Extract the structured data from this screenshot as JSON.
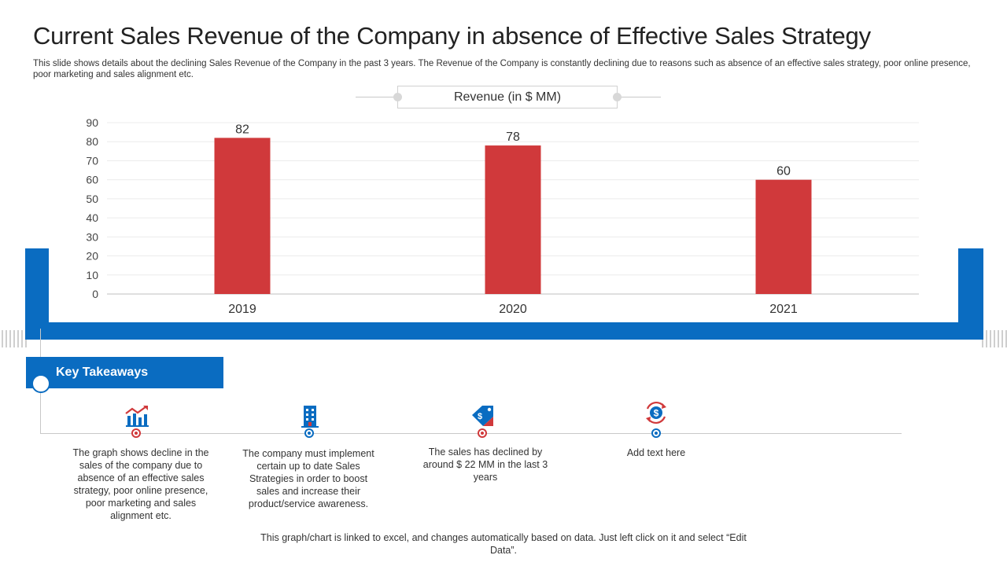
{
  "title": "Current Sales Revenue of the Company in absence of Effective Sales Strategy",
  "subtitle": "This slide shows details about the declining Sales Revenue of the Company in the past 3 years. The Revenue of the Company is constantly declining due to reasons such as absence of an effective sales strategy, poor online presence, poor marketing and sales alignment etc.",
  "colors": {
    "accent_blue": "#0a6cc1",
    "bar_red": "#d0393b"
  },
  "chart_data": {
    "type": "bar",
    "title": "Revenue (in $ MM)",
    "categories": [
      "2019",
      "2020",
      "2021"
    ],
    "series": [
      {
        "name": "Revenue (in $ MM)",
        "values": [
          82,
          78,
          60
        ]
      }
    ],
    "ylim": [
      0,
      90
    ],
    "yticks": [
      0,
      10,
      20,
      30,
      40,
      50,
      60,
      70,
      80,
      90
    ],
    "grid": true,
    "xlabel": "",
    "ylabel": ""
  },
  "key_takeaways": {
    "heading": "Key Takeaways",
    "items": [
      {
        "icon": "bar-chart-icon",
        "color": "#d0393b",
        "text": "The graph shows decline in the sales of the company due to absence of an effective sales strategy, poor online presence, poor marketing and sales alignment etc."
      },
      {
        "icon": "building-icon",
        "color": "#0a6cc1",
        "text": "The company must implement certain up to date Sales Strategies in order to boost sales and increase their product/service awareness."
      },
      {
        "icon": "price-tag-icon",
        "color": "#d0393b",
        "text": "The sales has declined by around $ 22 MM in the last 3 years"
      },
      {
        "icon": "dollar-refresh-icon",
        "color": "#0a6cc1",
        "text": "Add text here"
      }
    ]
  },
  "footnote": "This graph/chart is linked to excel, and changes automatically based on data. Just left click on it and select “Edit Data”."
}
